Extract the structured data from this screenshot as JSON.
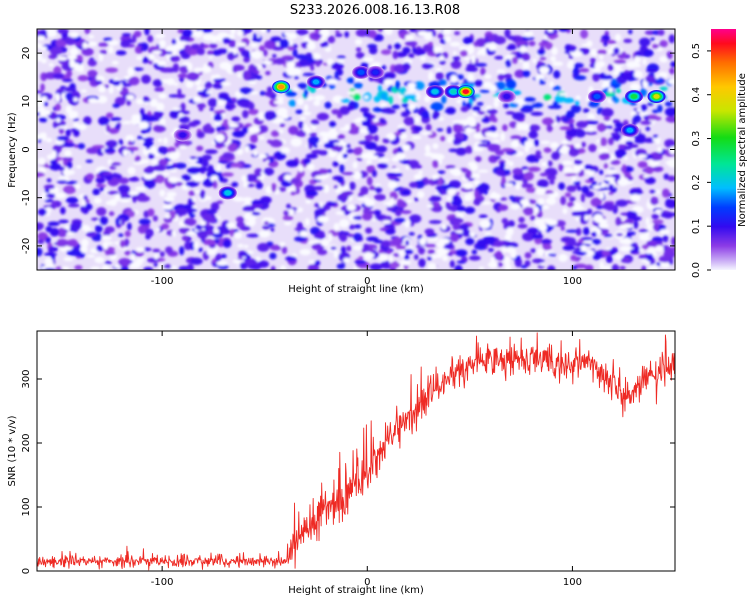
{
  "title": "S233.2026.008.16.13.R08",
  "colors": {
    "line": "#ee2a24",
    "background": "#ffffff",
    "frame": "#000000"
  },
  "chart_data": [
    {
      "type": "heatmap",
      "xlabel": "Height of straight line (km)",
      "ylabel": "Frequency (Hz)",
      "xlim": [
        -161,
        150
      ],
      "ylim": [
        -25,
        25
      ],
      "xticks": [
        -100,
        0,
        100
      ],
      "xtick_labels": [
        "-100",
        "0",
        "100"
      ],
      "yticks": [
        -20,
        -10,
        0,
        10,
        20
      ],
      "ytick_labels": [
        "-20",
        "-10",
        "0",
        "10",
        "20"
      ],
      "grid": false,
      "colorbar": {
        "label": "Normalized spectral amplitude",
        "range": [
          0,
          0.55
        ],
        "ticks": [
          0.0,
          0.1,
          0.2,
          0.3,
          0.4,
          0.5
        ],
        "tick_labels": [
          "0.0",
          "0.1",
          "0.2",
          "0.3",
          "0.4",
          "0.5"
        ],
        "colormap": "rainbow"
      },
      "peaks": [
        {
          "x": -42,
          "y": 13,
          "amplitude": 0.45
        },
        {
          "x": -25,
          "y": 14,
          "amplitude": 0.18
        },
        {
          "x": -3,
          "y": 16,
          "amplitude": 0.15
        },
        {
          "x": 4,
          "y": 16,
          "amplitude": 0.12
        },
        {
          "x": 33,
          "y": 12,
          "amplitude": 0.2
        },
        {
          "x": 42,
          "y": 12,
          "amplitude": 0.22
        },
        {
          "x": 48,
          "y": 12,
          "amplitude": 0.52
        },
        {
          "x": 68,
          "y": 11,
          "amplitude": 0.1
        },
        {
          "x": 112,
          "y": 11,
          "amplitude": 0.15
        },
        {
          "x": 130,
          "y": 11,
          "amplitude": 0.28
        },
        {
          "x": 141,
          "y": 11,
          "amplitude": 0.38
        },
        {
          "x": -68,
          "y": -9,
          "amplitude": 0.2
        },
        {
          "x": 128,
          "y": 4,
          "amplitude": 0.18
        },
        {
          "x": -90,
          "y": 3,
          "amplitude": 0.1
        }
      ],
      "band": {
        "center_hz": 11.5,
        "width_hz": 2.5,
        "from_km": -45,
        "to_km": 150,
        "amplitude": 0.12
      },
      "background_amplitude": 0.04
    },
    {
      "type": "line",
      "xlabel": "Height of straight line (km)",
      "ylabel": "SNR (10 * v/v)",
      "xlim": [
        -161,
        150
      ],
      "ylim": [
        0,
        375
      ],
      "xticks": [
        -100,
        0,
        100
      ],
      "xtick_labels": [
        "-100",
        "0",
        "100"
      ],
      "yticks": [
        0,
        100,
        200,
        300
      ],
      "ytick_labels": [
        "0",
        "100",
        "200",
        "300"
      ],
      "grid": false,
      "series": [
        {
          "name": "SNR",
          "x_start": -161,
          "x_end": 150,
          "num_points": 1200,
          "trend_x": [
            -161,
            -40,
            -36,
            -25,
            -10,
            0,
            10,
            20,
            30,
            40,
            50,
            60,
            75,
            90,
            105,
            110,
            118,
            125,
            130,
            135,
            140,
            145,
            150
          ],
          "trend_y": [
            15,
            15,
            40,
            85,
            120,
            160,
            205,
            240,
            270,
            305,
            320,
            328,
            330,
            322,
            325,
            322,
            295,
            270,
            280,
            300,
            305,
            315,
            330
          ],
          "noise_amplitude": [
            [
              -161,
              10
            ],
            [
              -40,
              10
            ],
            [
              -35,
              30
            ],
            [
              0,
              45
            ],
            [
              30,
              30
            ],
            [
              150,
              28
            ]
          ]
        }
      ]
    }
  ]
}
